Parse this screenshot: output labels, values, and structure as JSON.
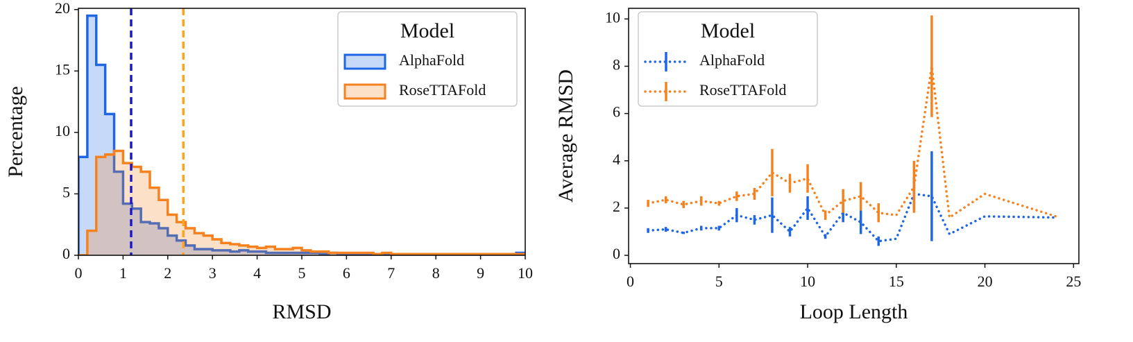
{
  "chart_data": [
    {
      "type": "histogram",
      "xlabel": "RMSD",
      "ylabel": "Percentage",
      "bins": [
        0,
        0.2,
        0.4,
        0.6,
        0.8,
        1,
        1.2,
        1.4,
        1.6,
        1.8,
        2,
        2.2,
        2.4,
        2.6,
        2.8,
        3,
        3.2,
        3.4,
        3.6,
        3.8,
        4,
        4.2,
        4.4,
        4.6,
        4.8,
        5,
        5.2,
        5.4,
        5.6,
        5.8,
        6,
        6.2,
        6.4,
        6.6,
        6.8,
        7,
        7.2,
        7.4,
        7.6,
        7.8,
        8,
        8.2,
        8.4,
        8.6,
        8.8,
        9,
        9.2,
        9.4,
        9.6,
        9.8,
        10
      ],
      "series": [
        {
          "name": "AlphaFold",
          "color": "#1f66e5",
          "values": [
            8,
            19.5,
            15.5,
            11.5,
            6.8,
            4.2,
            3.8,
            2.7,
            2.6,
            2.2,
            1.6,
            1.2,
            0.8,
            0.5,
            0.5,
            0.4,
            0.4,
            0.3,
            0.4,
            0.3,
            0.3,
            0.2,
            0.2,
            0.2,
            0.2,
            0.2,
            0.2,
            0.1,
            0.2,
            0.1,
            0.1,
            0.1,
            0.1,
            0.1,
            0.1,
            0.1,
            0.1,
            0.1,
            0.1,
            0.1,
            0.1,
            0.1,
            0.1,
            0.1,
            0.1,
            0.1,
            0.1,
            0.1,
            0.1,
            0.2
          ]
        },
        {
          "name": "RoseTTAFold",
          "color": "#f5821f",
          "values": [
            0,
            2,
            8,
            8.2,
            8.5,
            7.5,
            7.2,
            6.8,
            5.5,
            4.5,
            3.3,
            2.7,
            2.2,
            1.8,
            1.6,
            1.3,
            1,
            0.9,
            0.8,
            0.7,
            0.6,
            0.7,
            0.5,
            0.5,
            0.6,
            0.4,
            0.3,
            0.3,
            0.2,
            0.2,
            0.2,
            0.2,
            0.2,
            0.1,
            0.2,
            0.1,
            0.1,
            0.1,
            0.1,
            0.1,
            0.1,
            0.1,
            0.1,
            0.1,
            0.1,
            0.1,
            0.1,
            0.1,
            0.1,
            0.1
          ]
        }
      ],
      "vlines": [
        {
          "x": 1.18,
          "color": "#1a1acc"
        },
        {
          "x": 2.35,
          "color": "#ffa21f"
        }
      ],
      "xlim": [
        0,
        10
      ],
      "ylim": [
        0,
        20.1
      ],
      "xticks": [
        0,
        1,
        2,
        3,
        4,
        5,
        6,
        7,
        8,
        9,
        10
      ],
      "yticks": [
        0,
        5,
        10,
        15,
        20
      ],
      "legend": {
        "title": "Model",
        "loc": "upper right"
      }
    },
    {
      "type": "line",
      "xlabel": "Loop Length",
      "ylabel": "Average RMSD",
      "linestyle": "dotted",
      "x": [
        1,
        2,
        3,
        4,
        5,
        6,
        7,
        8,
        9,
        10,
        11,
        12,
        13,
        14,
        15,
        16,
        17,
        18,
        20,
        24
      ],
      "series": [
        {
          "name": "AlphaFold",
          "color": "#1f66e5",
          "values": [
            1.05,
            1.1,
            0.95,
            1.15,
            1.15,
            1.7,
            1.5,
            1.7,
            1,
            2,
            0.8,
            1.8,
            1.4,
            0.6,
            0.7,
            2.6,
            2.5,
            0.9,
            1.65,
            1.6
          ],
          "errors": [
            0.1,
            0.1,
            0.05,
            0.1,
            0.1,
            0.3,
            0.2,
            0.75,
            0.2,
            0.5,
            0.1,
            0.4,
            0.5,
            0.2,
            0,
            0.7,
            1.9,
            0,
            0,
            0
          ]
        },
        {
          "name": "RoseTTAFold",
          "color": "#f5821f",
          "values": [
            2.2,
            2.35,
            2.15,
            2.3,
            2.2,
            2.5,
            2.6,
            3.5,
            3.05,
            3.25,
            1.7,
            2.3,
            2.5,
            1.8,
            1.7,
            2.9,
            8,
            1.6,
            2.6,
            1.65
          ],
          "errors": [
            0.15,
            0.15,
            0.15,
            0.2,
            0.1,
            0.2,
            0.25,
            1,
            0.4,
            0.6,
            0.2,
            0.5,
            0.6,
            0.4,
            0,
            1.1,
            2.15,
            0,
            0,
            0
          ]
        }
      ],
      "xlim": [
        -0.1,
        25.3
      ],
      "ylim": [
        -0.35,
        10.45
      ],
      "xticks": [
        0,
        5,
        10,
        15,
        20,
        25
      ],
      "yticks": [
        0,
        2,
        4,
        6,
        8,
        10
      ],
      "legend": {
        "title": "Model",
        "loc": "upper left"
      }
    }
  ]
}
